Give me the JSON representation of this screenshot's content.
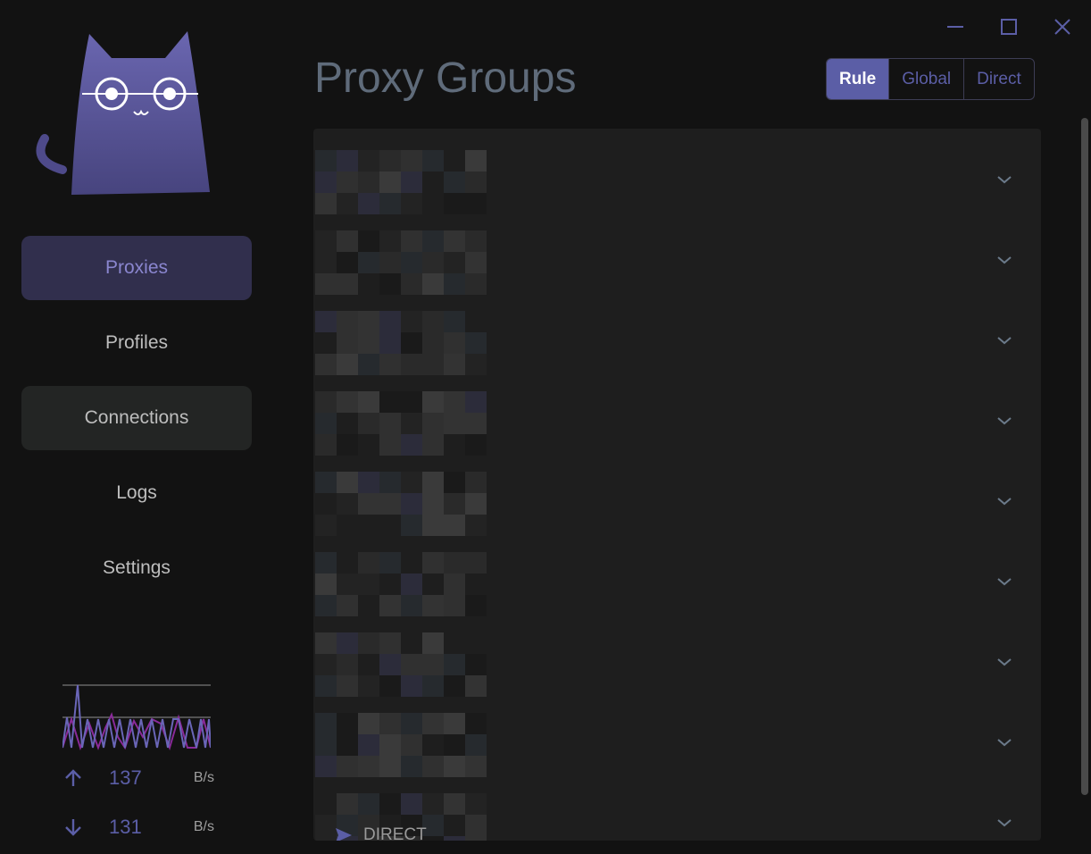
{
  "window": {
    "controls": [
      "minimize-icon",
      "maximize-icon",
      "close-icon"
    ]
  },
  "sidebar": {
    "items": [
      {
        "label": "Proxies",
        "state": "active"
      },
      {
        "label": "Profiles"
      },
      {
        "label": "Connections",
        "state": "hover"
      },
      {
        "label": "Logs"
      },
      {
        "label": "Settings"
      }
    ]
  },
  "traffic": {
    "upload": {
      "value": "137",
      "unit": "B/s"
    },
    "download": {
      "value": "131",
      "unit": "B/s"
    }
  },
  "header": {
    "title": "Proxy Groups",
    "modes": [
      "Rule",
      "Global",
      "Direct"
    ],
    "selected_mode": "Rule"
  },
  "groups": {
    "count_visible": 9,
    "last_selected": "DIRECT"
  },
  "colors": {
    "accent": "#5b5ea6",
    "upload_line": "#5b5ea6",
    "download_line": "#8a2a9a"
  }
}
